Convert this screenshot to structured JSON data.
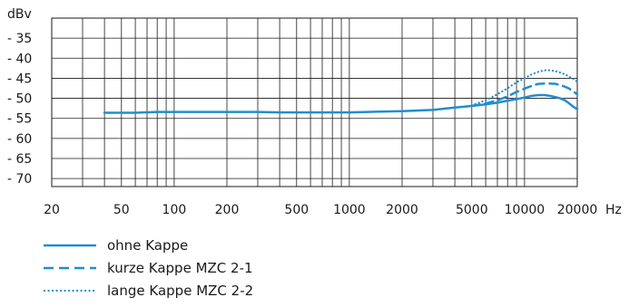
{
  "chart_data": {
    "type": "line",
    "title": "",
    "x_scale": "log",
    "xlim": [
      20,
      20000
    ],
    "ylim": [
      -72,
      -30
    ],
    "grid": true,
    "y_unit": "dBv",
    "x_unit": "Hz",
    "x_ticks": [
      20,
      50,
      100,
      200,
      500,
      1000,
      2000,
      5000,
      10000,
      20000
    ],
    "x_tick_labels": [
      "20",
      "50",
      "100",
      "200",
      "500",
      "1000",
      "2000",
      "5000",
      "10000",
      "20000"
    ],
    "y_ticks": [
      -35,
      -40,
      -45,
      -50,
      -55,
      -60,
      -65,
      -70
    ],
    "y_tick_labels": [
      "- 35",
      "- 40",
      "- 45",
      "- 50",
      "- 55",
      "- 60",
      "- 65",
      "- 70"
    ],
    "legend_placement": "below",
    "series": [
      {
        "name": "ohne Kappe",
        "style": "solid",
        "color": "#1f8ecf",
        "points": [
          [
            40,
            -53.6
          ],
          [
            60,
            -53.6
          ],
          [
            80,
            -53.4
          ],
          [
            100,
            -53.4
          ],
          [
            200,
            -53.4
          ],
          [
            300,
            -53.4
          ],
          [
            400,
            -53.5
          ],
          [
            600,
            -53.5
          ],
          [
            1000,
            -53.5
          ],
          [
            1500,
            -53.3
          ],
          [
            2000,
            -53.2
          ],
          [
            3000,
            -52.9
          ],
          [
            4000,
            -52.3
          ],
          [
            5000,
            -51.9
          ],
          [
            6000,
            -51.5
          ],
          [
            7000,
            -51.1
          ],
          [
            8000,
            -50.6
          ],
          [
            9000,
            -50.2
          ],
          [
            10000,
            -49.8
          ],
          [
            11000,
            -49.4
          ],
          [
            12000,
            -49.2
          ],
          [
            13000,
            -49.2
          ],
          [
            14000,
            -49.4
          ],
          [
            15000,
            -49.7
          ],
          [
            16000,
            -50.0
          ],
          [
            17000,
            -50.5
          ],
          [
            18000,
            -51.3
          ],
          [
            19000,
            -52.1
          ],
          [
            20000,
            -52.7
          ]
        ]
      },
      {
        "name": "kurze Kappe MZC 2-1",
        "style": "dashed",
        "color": "#1f8ecf",
        "points": [
          [
            5000,
            -51.9
          ],
          [
            6000,
            -51.3
          ],
          [
            7000,
            -50.5
          ],
          [
            8000,
            -49.5
          ],
          [
            9000,
            -48.4
          ],
          [
            10000,
            -47.6
          ],
          [
            11000,
            -46.9
          ],
          [
            12000,
            -46.4
          ],
          [
            13000,
            -46.3
          ],
          [
            14000,
            -46.3
          ],
          [
            15000,
            -46.4
          ],
          [
            16000,
            -46.7
          ],
          [
            17000,
            -47.1
          ],
          [
            18000,
            -47.6
          ],
          [
            19000,
            -48.3
          ],
          [
            20000,
            -49.0
          ]
        ]
      },
      {
        "name": "lange Kappe MZC 2-2",
        "style": "dotted",
        "color": "#1f8ecf",
        "points": [
          [
            5000,
            -51.7
          ],
          [
            6000,
            -50.5
          ],
          [
            7000,
            -49.0
          ],
          [
            8000,
            -47.5
          ],
          [
            9000,
            -46.0
          ],
          [
            10000,
            -45.0
          ],
          [
            11000,
            -44.0
          ],
          [
            12000,
            -43.4
          ],
          [
            13000,
            -43.0
          ],
          [
            14000,
            -43.0
          ],
          [
            15000,
            -43.2
          ],
          [
            16000,
            -43.6
          ],
          [
            17000,
            -44.0
          ],
          [
            18000,
            -44.6
          ],
          [
            19000,
            -45.2
          ],
          [
            20000,
            -45.8
          ]
        ]
      }
    ]
  }
}
